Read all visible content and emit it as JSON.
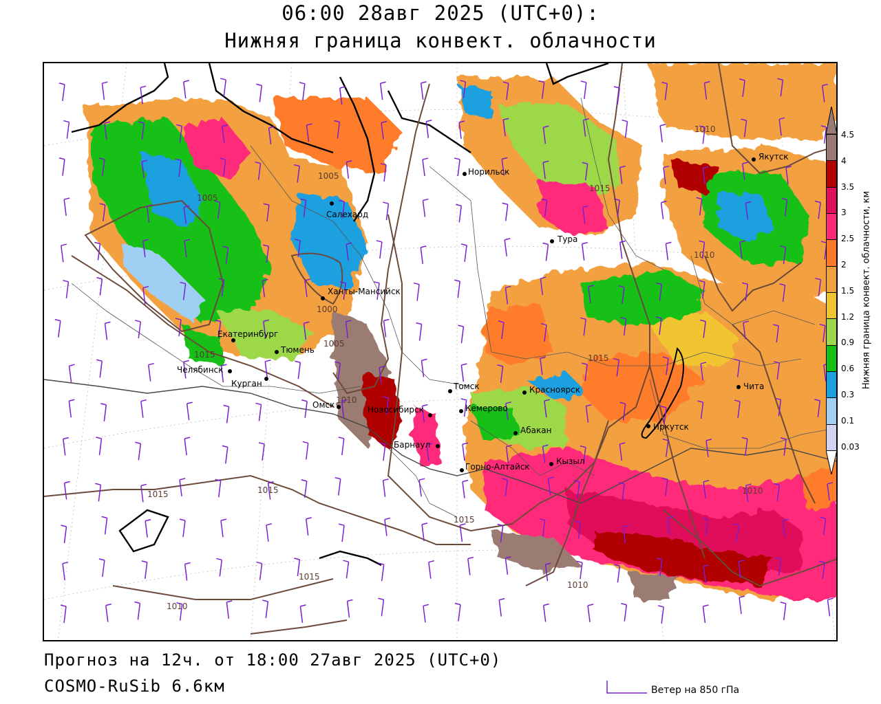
{
  "header": {
    "line1": "06:00 28авг 2025 (UTC+0):",
    "line2": "Нижняя граница конвект. облачности"
  },
  "footer": {
    "forecast": "Прогноз на 12ч. от 18:00 27авг 2025 (UTC+0)",
    "model": "COSMO-RuSib 6.6км"
  },
  "legend": {
    "title": "Нижняя граница конвект. облачности, км",
    "levels": [
      {
        "label": "4.5",
        "color": "#9a7b73"
      },
      {
        "label": "4",
        "color": "#b00000"
      },
      {
        "label": "3.5",
        "color": "#e0105a"
      },
      {
        "label": "3",
        "color": "#ff2a7a"
      },
      {
        "label": "2.5",
        "color": "#ff7b2a"
      },
      {
        "label": "2",
        "color": "#f3a040"
      },
      {
        "label": "1.5",
        "color": "#f1c431"
      },
      {
        "label": "1.2",
        "color": "#9dd84a"
      },
      {
        "label": "0.9",
        "color": "#18c018"
      },
      {
        "label": "0.6",
        "color": "#1aa0e0"
      },
      {
        "label": "0.3",
        "color": "#9fd0f4"
      },
      {
        "label": "0.1",
        "color": "#d4d4f2"
      },
      {
        "label": "0.03",
        "color": "#ffffff"
      }
    ]
  },
  "wind_key": {
    "label": "Ветер на 850 гПа",
    "color": "#7a1fd0"
  },
  "cities": [
    {
      "name": "Якутск"
    },
    {
      "name": "Норильск"
    },
    {
      "name": "Салехард"
    },
    {
      "name": "Тура"
    },
    {
      "name": "Ханты-Мансийск"
    },
    {
      "name": "Екатеринбург"
    },
    {
      "name": "Тюмень"
    },
    {
      "name": "Челябинск"
    },
    {
      "name": "Курган"
    },
    {
      "name": "Омск"
    },
    {
      "name": "Новосибирск"
    },
    {
      "name": "Томск"
    },
    {
      "name": "Кемерово"
    },
    {
      "name": "Красноярск"
    },
    {
      "name": "Абакан"
    },
    {
      "name": "Барнаул"
    },
    {
      "name": "Горно-Алтайск"
    },
    {
      "name": "Кызыл"
    },
    {
      "name": "Иркутск"
    },
    {
      "name": "Чита"
    }
  ],
  "isobars": [
    "1005",
    "1005",
    "1000",
    "1005",
    "1010",
    "1015",
    "1015",
    "1015",
    "1015",
    "1015",
    "1010",
    "1010",
    "1010",
    "1010",
    "1015",
    "1015",
    "1010"
  ]
}
